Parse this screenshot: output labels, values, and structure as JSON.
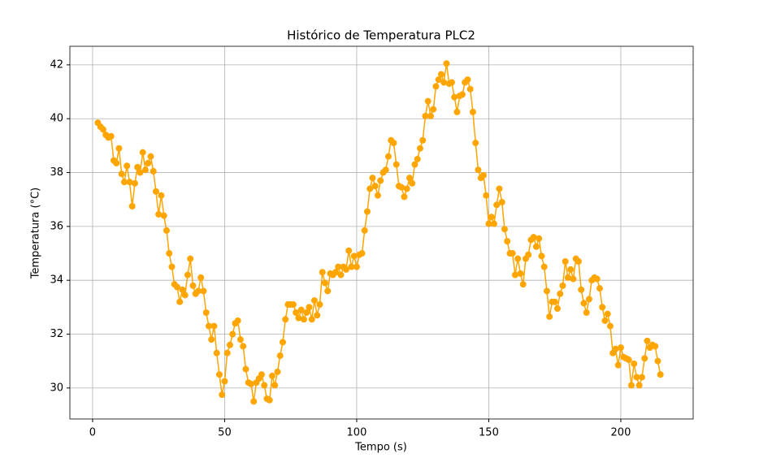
{
  "chart_data": {
    "type": "line",
    "title": "Histórico de Temperatura PLC2",
    "x_label": "Tempo (s)",
    "y_label": "Temperatura (°C)",
    "x": [
      2,
      3,
      4,
      5,
      6,
      7,
      8,
      9,
      10,
      11,
      12,
      13,
      14,
      15,
      16,
      17,
      18,
      19,
      20,
      21,
      22,
      23,
      24,
      25,
      26,
      27,
      28,
      29,
      30,
      31,
      32,
      33,
      34,
      35,
      36,
      37,
      38,
      39,
      40,
      41,
      42,
      43,
      44,
      45,
      46,
      47,
      48,
      49,
      50,
      51,
      52,
      53,
      54,
      55,
      56,
      57,
      58,
      59,
      60,
      61,
      62,
      63,
      64,
      65,
      66,
      67,
      68,
      69,
      70,
      71,
      72,
      73,
      74,
      75,
      76,
      77,
      78,
      79,
      80,
      81,
      82,
      83,
      84,
      85,
      86,
      87,
      88,
      89,
      90,
      91,
      92,
      93,
      94,
      95,
      96,
      97,
      98,
      99,
      100,
      101,
      102,
      103,
      104,
      105,
      106,
      107,
      108,
      109,
      110,
      111,
      112,
      113,
      114,
      115,
      116,
      117,
      118,
      119,
      120,
      121,
      122,
      123,
      124,
      125,
      126,
      127,
      128,
      129,
      130,
      131,
      132,
      133,
      134,
      135,
      136,
      137,
      138,
      139,
      140,
      141,
      142,
      143,
      144,
      145,
      146,
      147,
      148,
      149,
      150,
      151,
      152,
      153,
      154,
      155,
      156,
      157,
      158,
      159,
      160,
      161,
      162,
      163,
      164,
      165,
      166,
      167,
      168,
      169,
      170,
      171,
      172,
      173,
      174,
      175,
      176,
      177,
      178,
      179,
      180,
      181,
      182,
      183,
      184,
      185,
      186,
      187,
      188,
      189,
      190,
      191,
      192,
      193,
      194,
      195,
      196,
      197,
      198,
      199,
      200,
      201,
      202,
      203,
      204,
      205,
      206,
      207,
      208,
      209,
      210,
      211,
      212,
      213,
      214,
      215
    ],
    "series": [
      {
        "color": "#ffa500",
        "values": [
          39.85,
          39.7,
          39.6,
          39.4,
          39.3,
          39.35,
          38.45,
          38.35,
          38.9,
          37.95,
          37.65,
          38.25,
          37.65,
          36.75,
          37.6,
          38.2,
          38.0,
          38.75,
          38.1,
          38.35,
          38.6,
          38.05,
          37.3,
          36.45,
          37.15,
          36.4,
          35.85,
          35.0,
          34.5,
          33.85,
          33.75,
          33.2,
          33.65,
          33.45,
          34.2,
          34.8,
          33.8,
          33.5,
          33.6,
          34.1,
          33.6,
          32.8,
          32.3,
          31.8,
          32.3,
          31.3,
          30.5,
          29.75,
          30.25,
          31.3,
          31.6,
          32.0,
          32.4,
          32.5,
          31.8,
          31.55,
          30.7,
          30.2,
          30.15,
          29.5,
          30.2,
          30.35,
          30.5,
          30.1,
          29.6,
          29.55,
          30.45,
          30.1,
          30.6,
          31.2,
          31.7,
          32.55,
          33.1,
          33.1,
          33.1,
          32.8,
          32.6,
          32.9,
          32.55,
          32.8,
          33.0,
          32.55,
          33.25,
          32.7,
          33.1,
          34.3,
          33.9,
          33.6,
          34.25,
          34.2,
          34.3,
          34.5,
          34.2,
          34.5,
          34.4,
          35.1,
          34.5,
          34.9,
          34.5,
          34.95,
          35.0,
          35.85,
          36.55,
          37.4,
          37.8,
          37.5,
          37.15,
          37.7,
          38.0,
          38.1,
          38.6,
          39.2,
          39.1,
          38.3,
          37.5,
          37.45,
          37.1,
          37.4,
          37.8,
          37.6,
          38.3,
          38.5,
          38.9,
          39.2,
          40.1,
          40.65,
          40.1,
          40.35,
          41.2,
          41.45,
          41.65,
          41.35,
          42.05,
          41.3,
          41.35,
          40.8,
          40.25,
          40.85,
          40.9,
          41.35,
          41.45,
          41.1,
          40.25,
          39.1,
          38.1,
          37.8,
          37.9,
          37.15,
          36.1,
          36.35,
          36.1,
          36.8,
          37.4,
          36.9,
          35.9,
          35.45,
          35.0,
          35.0,
          34.2,
          34.8,
          34.25,
          33.85,
          34.8,
          34.95,
          35.5,
          35.6,
          35.25,
          35.55,
          34.9,
          34.5,
          33.6,
          32.65,
          33.2,
          33.2,
          32.95,
          33.5,
          33.8,
          34.7,
          34.1,
          34.4,
          34.05,
          34.8,
          34.7,
          33.65,
          33.15,
          32.8,
          33.3,
          34.0,
          34.1,
          34.05,
          33.7,
          33.0,
          32.5,
          32.75,
          32.3,
          31.3,
          31.45,
          30.85,
          31.5,
          31.15,
          31.1,
          31.05,
          30.1,
          30.9,
          30.4,
          30.1,
          30.4,
          31.1,
          31.75,
          31.5,
          31.6,
          31.55,
          31.0,
          30.5
        ]
      }
    ],
    "xlim": [
      -8.6,
      227.4
    ],
    "ylim": [
      28.85,
      42.69
    ],
    "xticks": [
      0,
      50,
      100,
      150,
      200
    ],
    "yticks": [
      30,
      32,
      34,
      36,
      38,
      40,
      42
    ],
    "grid": true
  }
}
